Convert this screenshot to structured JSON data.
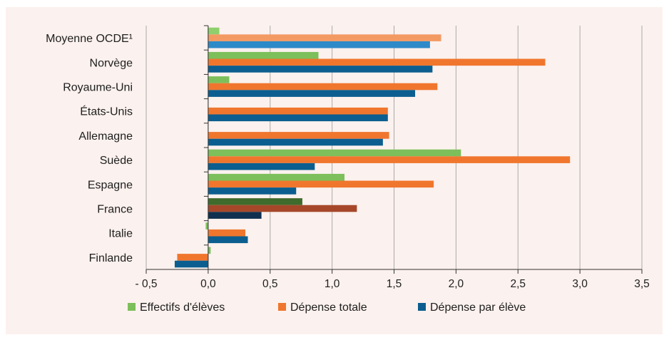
{
  "chart_data": {
    "type": "bar",
    "orientation": "horizontal",
    "categories": [
      "Moyenne OCDE¹",
      "Norvège",
      "Royaume-Uni",
      "États-Unis",
      "Allemagne",
      "Suède",
      "Espagne",
      "France",
      "Italie",
      "Finlande"
    ],
    "series": [
      {
        "name": "Effectifs d'élèves",
        "color": "#7dbf5b",
        "values": [
          0.09,
          0.89,
          0.17,
          0.0,
          0.0,
          2.04,
          1.1,
          0.76,
          -0.02,
          0.02
        ]
      },
      {
        "name": "Dépense totale",
        "color": "#f0762e",
        "values": [
          1.88,
          2.72,
          1.85,
          1.45,
          1.46,
          2.92,
          1.82,
          1.2,
          0.3,
          -0.25
        ]
      },
      {
        "name": "Dépense par élève",
        "color": "#0b5e8f",
        "values": [
          1.79,
          1.81,
          1.67,
          1.45,
          1.41,
          0.86,
          0.71,
          0.43,
          0.32,
          -0.27
        ]
      }
    ],
    "highlight": {
      "category": "France",
      "colors": [
        "#3f6b2c",
        "#a6472a",
        "#10304f"
      ]
    },
    "average_colors": [
      "#8fd06c",
      "#f39a63",
      "#2d8ac8"
    ],
    "xlim": [
      -0.5,
      3.5
    ],
    "xticks": [
      -0.5,
      0.0,
      0.5,
      1.0,
      1.5,
      2.0,
      2.5,
      3.0,
      3.5
    ],
    "xtick_labels": [
      "- 0,5",
      "0,0",
      "0,5",
      "1,0",
      "1,5",
      "2,0",
      "2,5",
      "3,0",
      "3,5"
    ],
    "grid": "vertical",
    "legend_position": "bottom"
  }
}
